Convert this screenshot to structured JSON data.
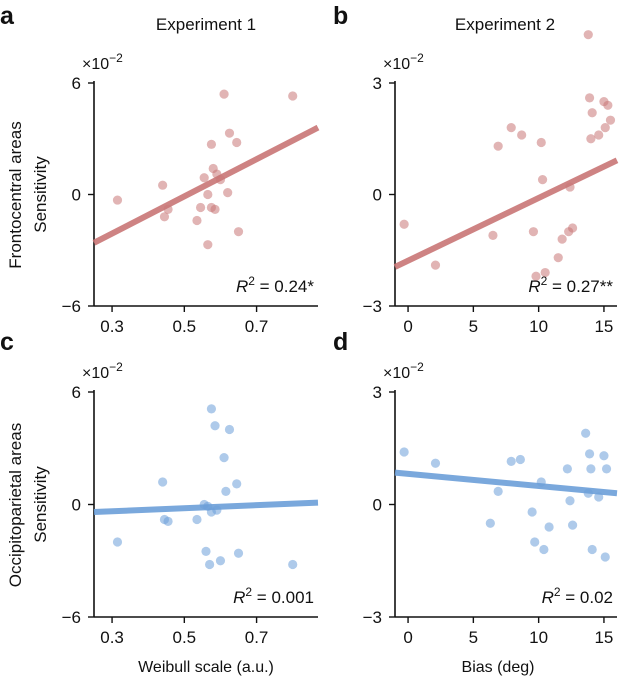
{
  "column_titles": [
    "Experiment 1",
    "Experiment 2"
  ],
  "row_labels": [
    "Frontocentral areas",
    "Occipitoparietal areas"
  ],
  "colors": {
    "red": "#c97676",
    "blue": "#6c9fd9",
    "axis": "#111111"
  },
  "chart_data": [
    {
      "panel": "a",
      "type": "scatter",
      "color": "red",
      "ylabel": "Sensitivity",
      "xlabel": "",
      "xlim": [
        0.25,
        0.87
      ],
      "ylim": [
        -6,
        6
      ],
      "xticks": [
        "0.3",
        "0.5",
        "0.7"
      ],
      "xtick_values": [
        0.3,
        0.5,
        0.7
      ],
      "yticks": [
        "6",
        "0",
        "−6"
      ],
      "ytick_values": [
        6,
        0,
        -6
      ],
      "multiplier_base": "×10",
      "multiplier_exp": "−2",
      "r2_label": "R",
      "r2_sup": "2",
      "r2_value": " = 0.24*",
      "fit": {
        "x0": 0.25,
        "y0": -2.6,
        "x1": 0.87,
        "y1": 3.6
      },
      "points": [
        {
          "x": 0.315,
          "y": -0.3
        },
        {
          "x": 0.44,
          "y": 0.5
        },
        {
          "x": 0.445,
          "y": -1.2
        },
        {
          "x": 0.455,
          "y": -0.8
        },
        {
          "x": 0.535,
          "y": -1.4
        },
        {
          "x": 0.545,
          "y": -0.7
        },
        {
          "x": 0.555,
          "y": 0.9
        },
        {
          "x": 0.565,
          "y": 0.0
        },
        {
          "x": 0.565,
          "y": -2.7
        },
        {
          "x": 0.575,
          "y": -0.7
        },
        {
          "x": 0.575,
          "y": 2.7
        },
        {
          "x": 0.58,
          "y": 1.4
        },
        {
          "x": 0.585,
          "y": -0.8
        },
        {
          "x": 0.59,
          "y": 1.1
        },
        {
          "x": 0.6,
          "y": 0.8
        },
        {
          "x": 0.61,
          "y": 5.4
        },
        {
          "x": 0.62,
          "y": 0.1
        },
        {
          "x": 0.625,
          "y": 3.3
        },
        {
          "x": 0.645,
          "y": 2.8
        },
        {
          "x": 0.65,
          "y": -2.0
        },
        {
          "x": 0.8,
          "y": 5.3
        }
      ]
    },
    {
      "panel": "b",
      "type": "scatter",
      "color": "red",
      "ylabel": "",
      "xlabel": "",
      "xlim": [
        -1,
        16
      ],
      "ylim": [
        -3,
        3
      ],
      "xticks": [
        "0",
        "5",
        "10",
        "15"
      ],
      "xtick_values": [
        0,
        5,
        10,
        15
      ],
      "yticks": [
        "3",
        "0",
        "−3"
      ],
      "ytick_values": [
        3,
        0,
        -3
      ],
      "multiplier_base": "×10",
      "multiplier_exp": "−2",
      "r2_label": "R",
      "r2_sup": "2",
      "r2_value": " = 0.27**",
      "fit": {
        "x0": -1,
        "y0": -1.95,
        "x1": 16,
        "y1": 0.92
      },
      "points": [
        {
          "x": -0.3,
          "y": -0.8
        },
        {
          "x": 2.1,
          "y": -1.9
        },
        {
          "x": 6.5,
          "y": -1.1
        },
        {
          "x": 6.9,
          "y": 1.3
        },
        {
          "x": 7.9,
          "y": 1.8
        },
        {
          "x": 8.7,
          "y": 1.6
        },
        {
          "x": 9.6,
          "y": -1.0
        },
        {
          "x": 9.8,
          "y": -2.2
        },
        {
          "x": 10.2,
          "y": 1.4
        },
        {
          "x": 10.3,
          "y": 0.4
        },
        {
          "x": 10.5,
          "y": -2.1
        },
        {
          "x": 11.5,
          "y": -1.7
        },
        {
          "x": 11.8,
          "y": -1.2
        },
        {
          "x": 12.3,
          "y": -1.0
        },
        {
          "x": 12.6,
          "y": -0.9
        },
        {
          "x": 12.4,
          "y": 0.2
        },
        {
          "x": 13.8,
          "y": 4.3
        },
        {
          "x": 13.9,
          "y": 2.6
        },
        {
          "x": 14.0,
          "y": 1.5
        },
        {
          "x": 14.1,
          "y": 2.2
        },
        {
          "x": 14.6,
          "y": 1.6
        },
        {
          "x": 15.0,
          "y": 2.5
        },
        {
          "x": 15.1,
          "y": 1.8
        },
        {
          "x": 15.3,
          "y": 2.4
        },
        {
          "x": 15.5,
          "y": 2.0
        }
      ]
    },
    {
      "panel": "c",
      "type": "scatter",
      "color": "blue",
      "ylabel": "Sensitivity",
      "xlabel": "Weibull scale (a.u.)",
      "xlim": [
        0.25,
        0.87
      ],
      "ylim": [
        -6,
        6
      ],
      "xticks": [
        "0.3",
        "0.5",
        "0.7"
      ],
      "xtick_values": [
        0.3,
        0.5,
        0.7
      ],
      "yticks": [
        "6",
        "0",
        "−6"
      ],
      "ytick_values": [
        6,
        0,
        -6
      ],
      "multiplier_base": "×10",
      "multiplier_exp": "−2",
      "r2_label": "R",
      "r2_sup": "2",
      "r2_value": " = 0.001",
      "fit": {
        "x0": 0.25,
        "y0": -0.4,
        "x1": 0.87,
        "y1": 0.1
      },
      "points": [
        {
          "x": 0.315,
          "y": -2.0
        },
        {
          "x": 0.44,
          "y": 1.2
        },
        {
          "x": 0.445,
          "y": -0.8
        },
        {
          "x": 0.455,
          "y": -0.9
        },
        {
          "x": 0.535,
          "y": -0.8
        },
        {
          "x": 0.555,
          "y": 0.0
        },
        {
          "x": 0.56,
          "y": -2.5
        },
        {
          "x": 0.565,
          "y": -0.1
        },
        {
          "x": 0.57,
          "y": -3.2
        },
        {
          "x": 0.575,
          "y": -0.4
        },
        {
          "x": 0.575,
          "y": 5.1
        },
        {
          "x": 0.585,
          "y": 4.2
        },
        {
          "x": 0.59,
          "y": -0.3
        },
        {
          "x": 0.6,
          "y": -3.0
        },
        {
          "x": 0.61,
          "y": 2.5
        },
        {
          "x": 0.615,
          "y": 0.7
        },
        {
          "x": 0.625,
          "y": 4.0
        },
        {
          "x": 0.645,
          "y": 1.1
        },
        {
          "x": 0.65,
          "y": -2.6
        },
        {
          "x": 0.8,
          "y": -3.2
        }
      ]
    },
    {
      "panel": "d",
      "type": "scatter",
      "color": "blue",
      "ylabel": "",
      "xlabel": "Bias (deg)",
      "xlim": [
        -1,
        16
      ],
      "ylim": [
        -3,
        3
      ],
      "xticks": [
        "0",
        "5",
        "10",
        "15"
      ],
      "xtick_values": [
        0,
        5,
        10,
        15
      ],
      "yticks": [
        "3",
        "0",
        "−3"
      ],
      "ytick_values": [
        3,
        0,
        -3
      ],
      "multiplier_base": "×10",
      "multiplier_exp": "−2",
      "r2_label": "R",
      "r2_sup": "2",
      "r2_value": " = 0.02",
      "fit": {
        "x0": -1,
        "y0": 0.85,
        "x1": 16,
        "y1": 0.3
      },
      "points": [
        {
          "x": -0.3,
          "y": 1.4
        },
        {
          "x": 2.1,
          "y": 1.1
        },
        {
          "x": 6.3,
          "y": -0.5
        },
        {
          "x": 6.9,
          "y": 0.35
        },
        {
          "x": 7.9,
          "y": 1.15
        },
        {
          "x": 8.6,
          "y": 1.2
        },
        {
          "x": 9.5,
          "y": -0.2
        },
        {
          "x": 9.7,
          "y": -1.0
        },
        {
          "x": 10.2,
          "y": 0.6
        },
        {
          "x": 10.4,
          "y": -1.2
        },
        {
          "x": 10.8,
          "y": -0.6
        },
        {
          "x": 12.2,
          "y": 0.95
        },
        {
          "x": 12.4,
          "y": 0.1
        },
        {
          "x": 12.6,
          "y": -0.55
        },
        {
          "x": 13.6,
          "y": 1.9
        },
        {
          "x": 13.8,
          "y": 0.3
        },
        {
          "x": 13.9,
          "y": 1.35
        },
        {
          "x": 14.0,
          "y": 0.95
        },
        {
          "x": 14.1,
          "y": -1.2
        },
        {
          "x": 14.6,
          "y": 0.2
        },
        {
          "x": 15.0,
          "y": 1.3
        },
        {
          "x": 15.1,
          "y": -1.4
        },
        {
          "x": 15.2,
          "y": 0.95
        }
      ]
    }
  ]
}
